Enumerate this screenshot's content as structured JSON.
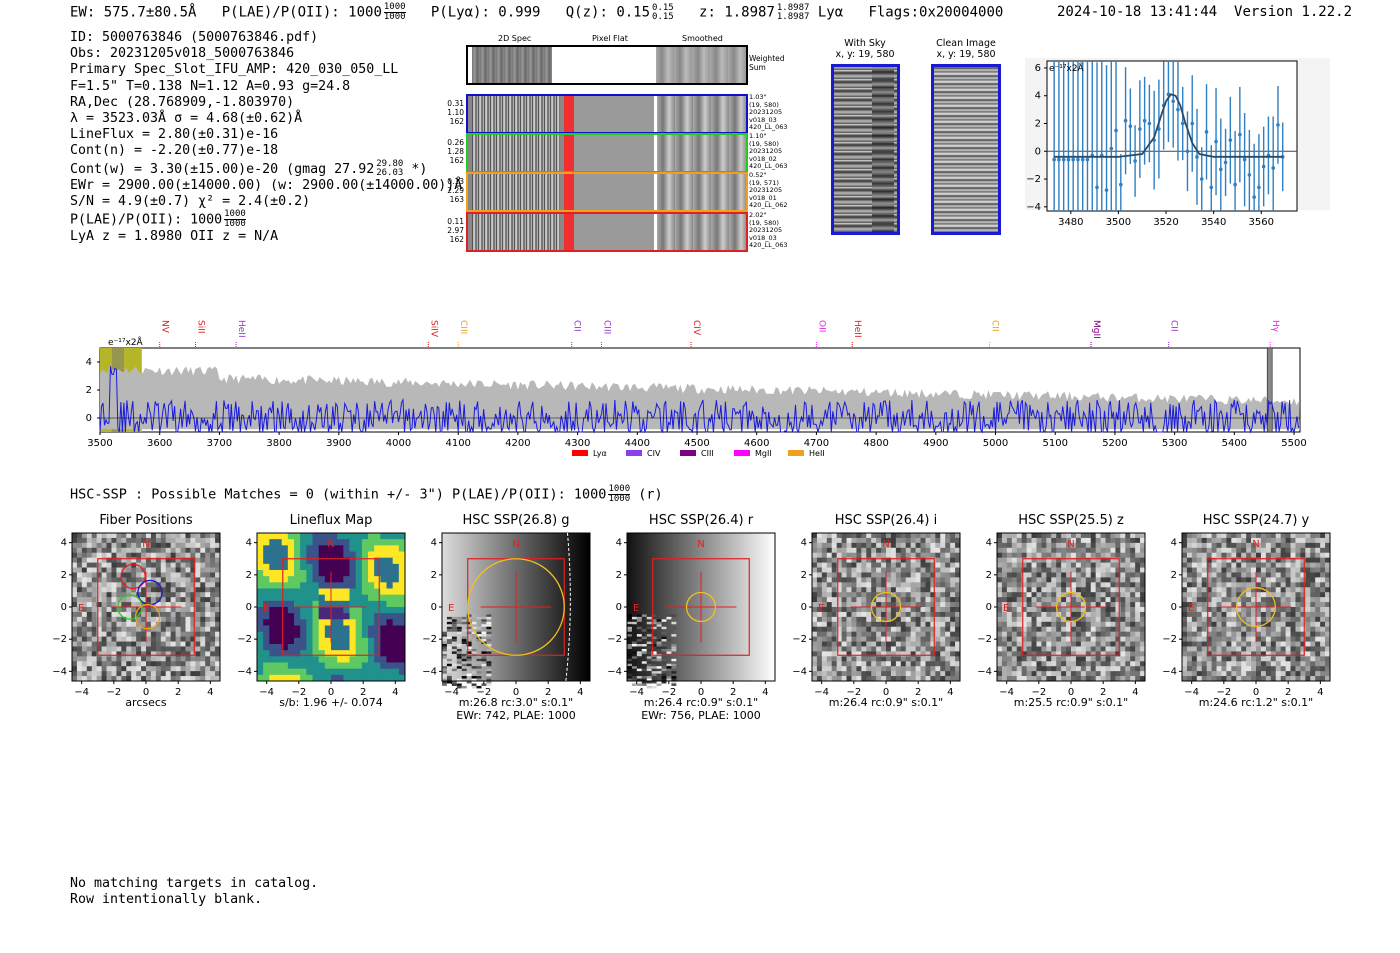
{
  "header": {
    "ew": "EW: 575.7±80.5Å",
    "plae_label": "P(LAE)/P(OII): 1000",
    "plae_hi": "1000",
    "plae_lo": "1000",
    "plya": "P(Lyα): 0.999",
    "qz_label": "Q(z): 0.15",
    "qz_hi": "0.15",
    "qz_lo": "0.15",
    "z_label": "z: 1.8987",
    "z_hi": "1.8987",
    "z_lo": "1.8987",
    "line": "Lyα",
    "flags": "Flags:0x20004000",
    "timestamp": "2024-10-18 13:41:44",
    "version": "Version 1.22.2"
  },
  "info": {
    "id": "ID: 5000763846 (5000763846.pdf)",
    "obs": "Obs: 20231205v018_5000763846",
    "primary": "Primary Spec_Slot_IFU_AMP: 420_030_050_LL",
    "fthr": "F=1.5\"  T=0.138  N=1.12  A=0.93  g=24.8",
    "radec": "RA,Dec (28.768909,-1.803970)",
    "lambda": "λ = 3523.03Å  σ = 4.68(±0.62)Å",
    "lineflux": "LineFlux = 2.80(±0.31)e-16",
    "contn": "Cont(n) = -2.20(±0.77)e-18",
    "contw": "Cont(w) = 3.30(±15.00)e-20 (gmag 27.92",
    "gmag_hi": "29.80",
    "gmag_lo": "26.03",
    "contw_tail": "*)",
    "ewr": "EWr = 2900.00(±14000.00) (w: 2900.00(±14000.00))Å",
    "sn": "S/N = 4.9(±0.7)  χ² = 2.4(±0.2)",
    "plae": "P(LAE)/P(OII): 1000",
    "plae_hi": "1000",
    "plae_lo": "1000",
    "lyaz": "LyA z = 1.8980  OII z = N/A"
  },
  "spec2d": {
    "col_titles": [
      "2D Spec",
      "Pixel Flat",
      "Smoothed"
    ],
    "weighted": "Weighted Sum",
    "rows": [
      {
        "color": "#1010cc",
        "left": [
          "0.31",
          "1.10",
          "162"
        ],
        "right": [
          "1.03\"",
          "(19, 580)",
          "20231205",
          "v018_03",
          "420_LL_063"
        ]
      },
      {
        "color": "#22cc22",
        "left": [
          "0.26",
          "1.28",
          "162"
        ],
        "right": [
          "1.10\"",
          "(19, 580)",
          "20231205",
          "v018_02",
          "420_LL_063"
        ]
      },
      {
        "color": "#f0a020",
        "left": [
          "0.13",
          "2.29",
          "163"
        ],
        "right": [
          "0.52\"",
          "(19, 571)",
          "20231205",
          "v018_01",
          "420_LL_062"
        ]
      },
      {
        "color": "#e02020",
        "left": [
          "0.11",
          "2.97",
          "162"
        ],
        "right": [
          "2.02\"",
          "(19, 580)",
          "20231205",
          "v018_03",
          "420_LL_063"
        ]
      }
    ]
  },
  "withsky": {
    "title": "With Sky",
    "sub": "x, y: 19, 580"
  },
  "clean": {
    "title": "Clean Image",
    "sub": "x, y: 19, 580"
  },
  "zoom_chart": {
    "ylabel": "e⁻¹⁷x2Å",
    "xticks": [
      "3480",
      "3500",
      "3520",
      "3540",
      "3560"
    ],
    "yticks": [
      "6",
      "4",
      "2",
      "0",
      "−2",
      "−4"
    ]
  },
  "full_spectrum": {
    "ylabel": "e⁻¹⁷x2Å",
    "xticks": [
      "3500",
      "3600",
      "3700",
      "3800",
      "3900",
      "4000",
      "4100",
      "4200",
      "4300",
      "4400",
      "4500",
      "4600",
      "4700",
      "4800",
      "4900",
      "5000",
      "5100",
      "5200",
      "5300",
      "5400",
      "5500"
    ],
    "yticks": [
      "4",
      "2",
      "0"
    ],
    "lines": [
      {
        "label": "NV",
        "color": "#e02020"
      },
      {
        "label": "SiII",
        "color": "#e02020"
      },
      {
        "label": "HeII",
        "color": "#9933cc"
      },
      {
        "label": "SiIV",
        "color": "#e02020"
      },
      {
        "label": "CIII",
        "color": "#f0a020"
      },
      {
        "label": "CII",
        "color": "#9933cc"
      },
      {
        "label": "CIII",
        "color": "#9933cc"
      },
      {
        "label": "CIV",
        "color": "#e02020"
      },
      {
        "label": "OII",
        "color": "#ee22ee"
      },
      {
        "label": "HeII",
        "color": "#e02020"
      },
      {
        "label": "CII",
        "color": "#f0a020"
      },
      {
        "label": "MgII",
        "color": "#800080"
      },
      {
        "label": "CII",
        "color": "#9933cc"
      },
      {
        "label": "Hγ",
        "color": "#ee22ee"
      }
    ],
    "legend": [
      {
        "label": "Lyα",
        "color": "#ff0000"
      },
      {
        "label": "CIV",
        "color": "#8a3ff0"
      },
      {
        "label": "CIII",
        "color": "#800080"
      },
      {
        "label": "MgII",
        "color": "#ff00ff"
      },
      {
        "label": "HeII",
        "color": "#f0a020"
      }
    ]
  },
  "hsc": {
    "line": "HSC-SSP : Possible Matches = 0 (within +/- 3\")  P(LAE)/P(OII): 1000",
    "plae_hi": "1000",
    "plae_lo": "1000",
    "band": "(r)"
  },
  "cutouts": [
    {
      "title": "Fiber Positions",
      "cap1": "arcsecs",
      "cap2": ""
    },
    {
      "title": "Lineflux Map",
      "cap1": "s/b: 1.96 +/- 0.074",
      "cap2": ""
    },
    {
      "title": "HSC SSP(26.8) g",
      "cap1": "m:26.8 rc:3.0\"  s:0.1\"",
      "cap2": "EWr: 742, PLAE: 1000"
    },
    {
      "title": "HSC SSP(26.4) r",
      "cap1": "m:26.4 rc:0.9\"  s:0.1\"",
      "cap2": "EWr: 756, PLAE: 1000"
    },
    {
      "title": "HSC SSP(26.4) i",
      "cap1": "m:26.4 rc:0.9\"  s:0.1\"",
      "cap2": ""
    },
    {
      "title": "HSC SSP(25.5) z",
      "cap1": "m:25.5 rc:0.9\"  s:0.1\"",
      "cap2": ""
    },
    {
      "title": "HSC SSP(24.7) y",
      "cap1": "m:24.6 rc:1.2\"  s:0.1\"",
      "cap2": ""
    }
  ],
  "cutout_axes": {
    "ticks": [
      "−4",
      "−2",
      "0",
      "2",
      "4"
    ],
    "north": "N",
    "east": "E"
  },
  "footer": {
    "line1": "No matching targets in catalog.",
    "line2": "Row intentionally blank."
  },
  "chart_data": [
    {
      "type": "line",
      "title": "",
      "ylabel": "e⁻¹⁷x2Å",
      "xlim": [
        3470,
        3575
      ],
      "ylim": [
        -4.3,
        6.5
      ],
      "series": [
        {
          "values": [
            [
              3473,
              -0.6
            ],
            [
              3475,
              -0.6
            ],
            [
              3477,
              -0.6
            ],
            [
              3479,
              -0.6
            ],
            [
              3481,
              -0.6
            ],
            [
              3483,
              -0.6
            ],
            [
              3485,
              -0.6
            ],
            [
              3487,
              -0.6
            ],
            [
              3489,
              -0.3
            ],
            [
              3491,
              -2.6
            ],
            [
              3493,
              -0.3
            ],
            [
              3495,
              -2.8
            ],
            [
              3497,
              0.2
            ],
            [
              3499,
              1.5
            ],
            [
              3501,
              -2.4
            ],
            [
              3503,
              2.2
            ],
            [
              3505,
              1.8
            ],
            [
              3507,
              -0.7
            ],
            [
              3509,
              1.6
            ],
            [
              3511,
              2.2
            ],
            [
              3513,
              2.0
            ],
            [
              3515,
              0.8
            ],
            [
              3517,
              1.6
            ],
            [
              3519,
              3.3
            ],
            [
              3521,
              4.1
            ],
            [
              3523,
              3.6
            ],
            [
              3525,
              3.0
            ],
            [
              3527,
              2.0
            ],
            [
              3529,
              0.0
            ],
            [
              3531,
              2.0
            ],
            [
              3533,
              -0.4
            ],
            [
              3535,
              -2.0
            ],
            [
              3537,
              1.4
            ],
            [
              3539,
              -2.6
            ],
            [
              3541,
              0.7
            ],
            [
              3543,
              -1.3
            ],
            [
              3545,
              -0.8
            ],
            [
              3547,
              0.8
            ],
            [
              3549,
              -2.4
            ],
            [
              3551,
              1.2
            ],
            [
              3553,
              -0.6
            ],
            [
              3555,
              -1.7
            ],
            [
              3557,
              -3.3
            ],
            [
              3559,
              -2.6
            ],
            [
              3561,
              -1.1
            ],
            [
              3563,
              -0.3
            ],
            [
              3565,
              -1.2
            ],
            [
              3567,
              1.9
            ],
            [
              3569,
              -0.4
            ]
          ]
        },
        {
          "values": [
            [
              3473,
              -0.4
            ],
            [
              3490,
              -0.4
            ],
            [
              3500,
              -0.4
            ],
            [
              3510,
              -0.2
            ],
            [
              3515,
              1.0
            ],
            [
              3518,
              2.6
            ],
            [
              3520,
              3.6
            ],
            [
              3522,
              4.1
            ],
            [
              3524,
              4.0
            ],
            [
              3526,
              3.3
            ],
            [
              3528,
              2.1
            ],
            [
              3531,
              0.6
            ],
            [
              3534,
              -0.2
            ],
            [
              3540,
              -0.4
            ],
            [
              3569,
              -0.4
            ]
          ]
        }
      ]
    },
    {
      "type": "line",
      "title": "",
      "ylabel": "e⁻¹⁷x2Å",
      "xlim": [
        3500,
        5510
      ],
      "ylim": [
        -1,
        5
      ],
      "x": [
        3500,
        5500
      ]
    }
  ]
}
